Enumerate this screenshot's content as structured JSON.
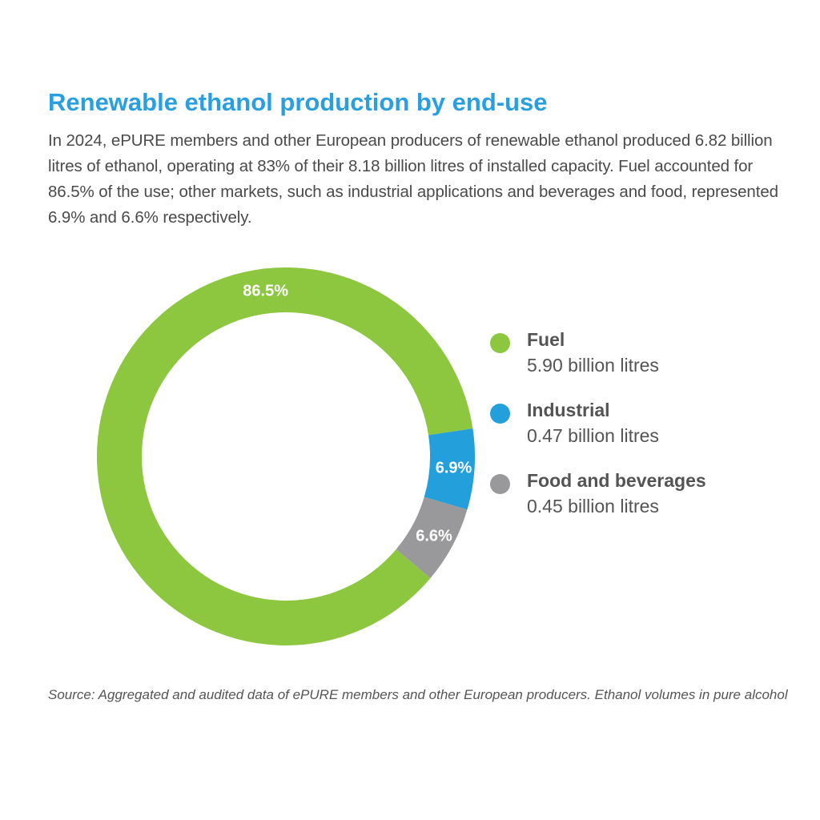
{
  "header": {
    "title": "Renewable ethanol production by end-use",
    "subtitle": "In 2024, ePURE members and other European producers of renewable ethanol produced 6.82 billion litres of ethanol, operating at 83% of their 8.18 billion litres of installed capacity. Fuel accounted for 86.5% of the use; other markets, such as industrial applications and beverages and food, represented 6.9% and 6.6% respectively."
  },
  "chart_data": {
    "type": "pie",
    "style": "donut",
    "title": "Renewable ethanol production by end-use",
    "legend_position": "right",
    "slices": [
      {
        "name": "Fuel",
        "value": 86.5,
        "label": "86.5%",
        "volume": "5.90 billion litres",
        "color": "#8dc63f"
      },
      {
        "name": "Industrial",
        "value": 6.9,
        "label": "6.9%",
        "volume": "0.47 billion litres",
        "color": "#239fdb"
      },
      {
        "name": "Food and beverages",
        "value": 6.6,
        "label": "6.6%",
        "volume": "0.45 billion litres",
        "color": "#99999b"
      }
    ]
  },
  "footer": {
    "source": "Source: Aggregated and audited data of ePURE members and other European producers. Ethanol volumes in pure alcohol"
  }
}
